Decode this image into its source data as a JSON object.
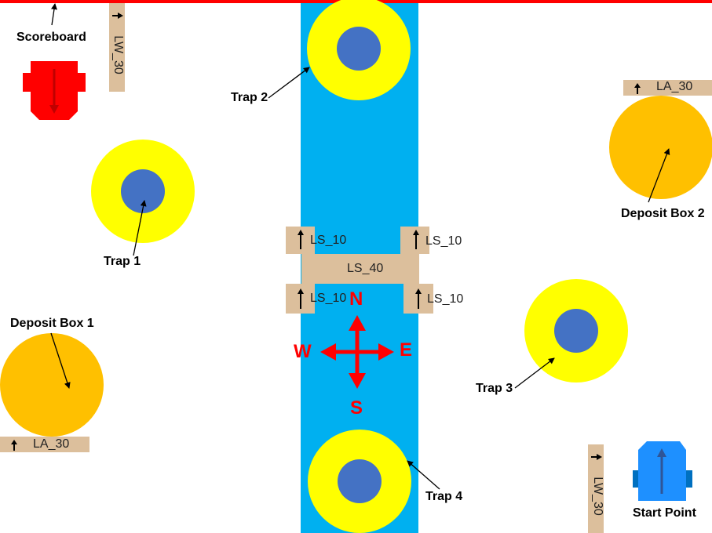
{
  "labels": {
    "scoreboard": "Scoreboard",
    "trap1": "Trap 1",
    "trap2": "Trap 2",
    "trap3": "Trap 3",
    "trap4": "Trap 4",
    "deposit_box_1": "Deposit Box 1",
    "deposit_box_2": "Deposit Box 2",
    "start_point": "Start Point"
  },
  "planks": {
    "lw_30_top": "LW_30",
    "lw_30_bottom": "LW_30",
    "la_30_right": "LA_30",
    "la_30_left": "LA_30",
    "ls_10_tl": "LS_10",
    "ls_10_tr": "LS_10",
    "ls_40": "LS_40",
    "ls_10_bl": "LS_10",
    "ls_10_br": "LS_10"
  },
  "compass": {
    "n": "N",
    "s": "S",
    "e": "E",
    "w": "W"
  },
  "colors": {
    "river": "#00b0f0",
    "trap_ring": "#ffff00",
    "trap_center": "#4472c4",
    "deposit_box": "#ffc000",
    "plank": "#dcbf9c",
    "compass": "#ff0000",
    "scoreboard_robot": "#ff0000",
    "start_robot": "#0070c0",
    "border_line": "#ff0000"
  },
  "icons": [
    "scoreboard-robot-icon",
    "start-robot-icon",
    "compass-icon",
    "up-arrow-icon",
    "right-arrow-icon"
  ]
}
